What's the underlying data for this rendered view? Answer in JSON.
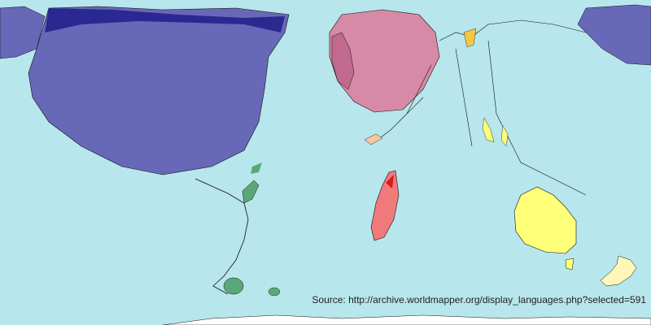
{
  "map": {
    "source_text": "Source: http://archive.worldmapper.org/display_languages.php?selected=591",
    "colors": {
      "ocean": "#b7e6ec",
      "north_america": "#6868b8",
      "north_america_dark": "#1f1f8a",
      "europe": "#d68aa6",
      "south_america": "#f07a7a",
      "central_america": "#5aa87a",
      "australia": "#ffff7a",
      "new_zealand": "#fff6b8",
      "africa_asia_accent": "#f5c842",
      "antarctica": "#ffffff"
    }
  }
}
